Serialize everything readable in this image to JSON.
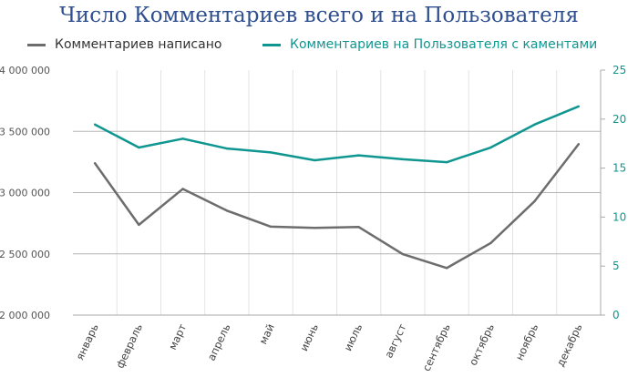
{
  "chart_data": {
    "type": "line",
    "title": "Число Комментариев всего и на Пользователя",
    "categories": [
      "январь",
      "февраль",
      "март",
      "апрель",
      "май",
      "июнь",
      "июль",
      "август",
      "сентябрь",
      "октябрь",
      "ноябрь",
      "декабрь"
    ],
    "series": [
      {
        "name": "Комментариев написано",
        "axis": "left",
        "color": "#6d6d6d",
        "values": [
          3240000,
          2737000,
          3030000,
          2853000,
          2722000,
          2712000,
          2719000,
          2498000,
          2384000,
          2588000,
          2930000,
          3396000
        ]
      },
      {
        "name": "Комментариев на Пользователя с каментами",
        "axis": "right",
        "color": "#0f9690",
        "values": [
          19.45,
          17.1,
          18.0,
          17.0,
          16.6,
          15.8,
          16.3,
          15.9,
          15.6,
          17.1,
          19.45,
          21.3
        ]
      }
    ],
    "left_axis": {
      "range": [
        2000000,
        4000000
      ],
      "ticks": [
        2000000,
        2500000,
        3000000,
        3500000,
        4000000
      ],
      "tick_labels": [
        "2 000 000",
        "2 500 000",
        "3 000 000",
        "3 500 000",
        "4 000 000"
      ]
    },
    "right_axis": {
      "range": [
        0,
        25
      ],
      "ticks": [
        0,
        5,
        10,
        15,
        20,
        25
      ],
      "tick_labels": [
        "0",
        "5",
        "10",
        "15",
        "20",
        "25"
      ]
    },
    "legend_position": "top",
    "grid": true
  }
}
